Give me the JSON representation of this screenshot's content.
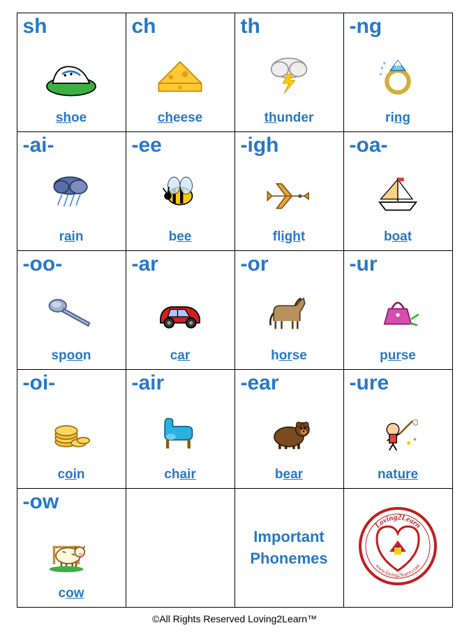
{
  "colors": {
    "text_blue": "#2878c8",
    "border": "#000000",
    "bg": "#ffffff"
  },
  "cells": [
    {
      "phoneme": "sh",
      "word_pre": "",
      "word_u": "sh",
      "word_post": "oe",
      "icon": "shoe"
    },
    {
      "phoneme": "ch",
      "word_pre": "",
      "word_u": "ch",
      "word_post": "eese",
      "icon": "cheese"
    },
    {
      "phoneme": "th",
      "word_pre": "",
      "word_u": "th",
      "word_post": "under",
      "icon": "thunder"
    },
    {
      "phoneme": "-ng",
      "word_pre": "ri",
      "word_u": "ng",
      "word_post": "",
      "icon": "ring"
    },
    {
      "phoneme": "-ai-",
      "word_pre": "r",
      "word_u": "ai",
      "word_post": "n",
      "icon": "rain"
    },
    {
      "phoneme": "-ee",
      "word_pre": "b",
      "word_u": "ee",
      "word_post": "",
      "icon": "bee"
    },
    {
      "phoneme": "-igh",
      "word_pre": "fl",
      "word_u": "igh",
      "word_post": "t",
      "icon": "flight"
    },
    {
      "phoneme": "-oa-",
      "word_pre": "b",
      "word_u": "oa",
      "word_post": "t",
      "icon": "boat"
    },
    {
      "phoneme": "-oo-",
      "word_pre": "sp",
      "word_u": "oo",
      "word_post": "n",
      "icon": "spoon"
    },
    {
      "phoneme": "-ar",
      "word_pre": "c",
      "word_u": "ar",
      "word_post": "",
      "icon": "car"
    },
    {
      "phoneme": "-or",
      "word_pre": "h",
      "word_u": "or",
      "word_post": "se",
      "icon": "horse"
    },
    {
      "phoneme": "-ur",
      "word_pre": "p",
      "word_u": "ur",
      "word_post": "se",
      "icon": "purse"
    },
    {
      "phoneme": "-oi-",
      "word_pre": "c",
      "word_u": "oi",
      "word_post": "n",
      "icon": "coin"
    },
    {
      "phoneme": "-air",
      "word_pre": "ch",
      "word_u": "air",
      "word_post": "",
      "icon": "chair"
    },
    {
      "phoneme": "-ear",
      "word_pre": "b",
      "word_u": "ear",
      "word_post": "",
      "icon": "bear"
    },
    {
      "phoneme": "-ure",
      "word_pre": "nat",
      "word_u": "ure",
      "word_post": "",
      "icon": "nature"
    },
    {
      "phoneme": "-ow",
      "word_pre": "c",
      "word_u": "ow",
      "word_post": "",
      "icon": "cow"
    }
  ],
  "important_label_1": "Important",
  "important_label_2": "Phonemes",
  "footer": "©All Rights Reserved Loving2Learn™",
  "logo_text_top": "Loving2Learn",
  "logo_text_bottom": "www.loving2learn.com"
}
